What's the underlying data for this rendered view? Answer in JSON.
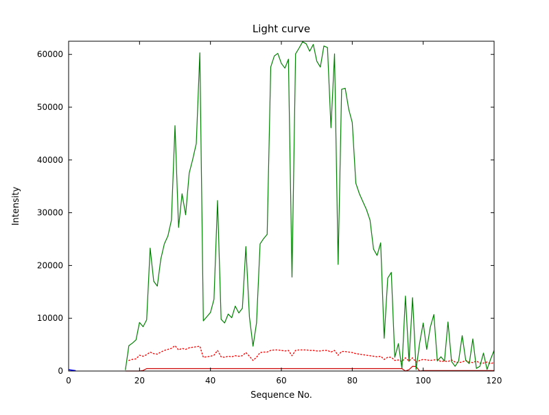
{
  "figure": {
    "background": "#ffffff",
    "frame_color": "#000000"
  },
  "chart_data": {
    "type": "line",
    "title": "Light curve",
    "xlabel": "Sequence No.",
    "ylabel": "Intensity",
    "xlim": [
      0,
      120
    ],
    "ylim": [
      0,
      62500
    ],
    "xticks": [
      0,
      20,
      40,
      60,
      80,
      100,
      120
    ],
    "yticks": [
      0,
      10000,
      20000,
      30000,
      40000,
      50000,
      60000
    ],
    "grid": false,
    "legend_position": "none",
    "series": [
      {
        "name": "light-curve-green",
        "color": "#008000",
        "style": "solid",
        "width": 1.2,
        "x": [
          16,
          17,
          18,
          19,
          20,
          21,
          22,
          23,
          24,
          25,
          26,
          27,
          28,
          29,
          30,
          31,
          32,
          33,
          34,
          35,
          36,
          37,
          38,
          39,
          40,
          41,
          42,
          43,
          44,
          45,
          46,
          47,
          48,
          49,
          50,
          51,
          52,
          53,
          54,
          55,
          56,
          57,
          58,
          59,
          60,
          61,
          62,
          63,
          64,
          65,
          66,
          67,
          68,
          69,
          70,
          71,
          72,
          73,
          74,
          75,
          76,
          77,
          78,
          79,
          80,
          81,
          82,
          83,
          84,
          85,
          86,
          87,
          88,
          89,
          90,
          91,
          92,
          93,
          94,
          95,
          96,
          97,
          98,
          99,
          100,
          101,
          102,
          103,
          104,
          105,
          106,
          107,
          108,
          109,
          110,
          111,
          112,
          113,
          114,
          115,
          116,
          117,
          118,
          119,
          120
        ],
        "y": [
          200,
          4800,
          5300,
          5900,
          9200,
          8400,
          9700,
          23300,
          17000,
          16100,
          21200,
          24100,
          25600,
          28600,
          46500,
          27200,
          33600,
          29600,
          37500,
          40100,
          43100,
          60300,
          9500,
          10300,
          11100,
          13600,
          32300,
          9800,
          9100,
          10800,
          10100,
          12300,
          11000,
          11900,
          23600,
          10200,
          4700,
          9100,
          24100,
          25100,
          25900,
          57600,
          59700,
          60200,
          58300,
          57400,
          59100,
          17800,
          60100,
          61200,
          62400,
          62000,
          60600,
          61900,
          58700,
          57600,
          61600,
          61300,
          46100,
          60100,
          20200,
          53400,
          53600,
          49600,
          47100,
          35600,
          33600,
          32100,
          30600,
          28600,
          23100,
          21900,
          24300,
          6200,
          17600,
          18700,
          2600,
          5200,
          500,
          14200,
          1800,
          13900,
          300,
          5300,
          9100,
          4100,
          8300,
          10700,
          1900,
          2700,
          1900,
          9300,
          1800,
          900,
          1900,
          6700,
          2000,
          1400,
          6100,
          500,
          900,
          3400,
          300,
          2200,
          3900
        ]
      },
      {
        "name": "background-red-dotted",
        "color": "#ff0000",
        "style": "dotted",
        "width": 1.4,
        "x": [
          17,
          18,
          19,
          20,
          21,
          22,
          23,
          24,
          25,
          26,
          27,
          28,
          29,
          30,
          31,
          32,
          33,
          34,
          35,
          36,
          37,
          38,
          39,
          40,
          41,
          42,
          43,
          44,
          45,
          46,
          47,
          48,
          49,
          50,
          51,
          52,
          53,
          54,
          55,
          56,
          57,
          58,
          59,
          60,
          61,
          62,
          63,
          64,
          65,
          66,
          67,
          68,
          69,
          70,
          71,
          72,
          73,
          74,
          75,
          76,
          77,
          78,
          79,
          80,
          81,
          82,
          83,
          84,
          85,
          86,
          87,
          88,
          89,
          90,
          91,
          92,
          93,
          94,
          95,
          96,
          97,
          98,
          99,
          100,
          101,
          102,
          103,
          104,
          105,
          106,
          107,
          108,
          109,
          110,
          111,
          112,
          113,
          114,
          115,
          116,
          117,
          118,
          119,
          120
        ],
        "y": [
          2000,
          2200,
          2300,
          3000,
          2800,
          3100,
          3600,
          3300,
          3200,
          3600,
          3900,
          4100,
          4300,
          4800,
          4000,
          4300,
          4100,
          4400,
          4500,
          4600,
          4700,
          2600,
          2700,
          2800,
          3000,
          3900,
          2700,
          2600,
          2800,
          2700,
          2900,
          2800,
          2900,
          3500,
          2800,
          2000,
          2600,
          3500,
          3600,
          3600,
          3900,
          4000,
          4000,
          3900,
          3800,
          3900,
          2900,
          3900,
          4000,
          4000,
          4000,
          3900,
          3900,
          3800,
          3800,
          3900,
          3900,
          3600,
          3900,
          3000,
          3700,
          3700,
          3600,
          3500,
          3300,
          3200,
          3100,
          3000,
          2900,
          2800,
          2700,
          2800,
          2200,
          2600,
          2600,
          2000,
          2100,
          1800,
          2500,
          1900,
          2500,
          1700,
          2000,
          2200,
          2100,
          2000,
          2100,
          2200,
          1800,
          1900,
          1800,
          2100,
          1700,
          1600,
          1700,
          2000,
          1700,
          1600,
          1900,
          1500,
          1500,
          1700,
          1400,
          1600
        ]
      },
      {
        "name": "baseline-red-solid",
        "color": "#cc0000",
        "style": "solid",
        "width": 1.2,
        "x": [
          16,
          17,
          18,
          19,
          20,
          21,
          22,
          23,
          24,
          25,
          26,
          27,
          28,
          29,
          30,
          31,
          32,
          33,
          34,
          35,
          36,
          37,
          38,
          39,
          40,
          41,
          42,
          43,
          44,
          45,
          46,
          47,
          48,
          49,
          50,
          51,
          52,
          53,
          54,
          55,
          56,
          57,
          58,
          59,
          60,
          61,
          62,
          63,
          64,
          65,
          66,
          67,
          68,
          69,
          70,
          71,
          72,
          73,
          74,
          75,
          76,
          77,
          78,
          79,
          80,
          81,
          82,
          83,
          84,
          85,
          86,
          87,
          88,
          89,
          90,
          91,
          92,
          93,
          94,
          95,
          96,
          97,
          98,
          99,
          100,
          101,
          102,
          103,
          104,
          105,
          106,
          107,
          108,
          109,
          110,
          111,
          112,
          113,
          114,
          115,
          116,
          117,
          118,
          119,
          120
        ],
        "y": [
          0,
          0,
          0,
          0,
          0,
          100,
          450,
          450,
          450,
          450,
          450,
          450,
          450,
          450,
          450,
          450,
          450,
          450,
          450,
          450,
          450,
          450,
          450,
          450,
          450,
          450,
          450,
          450,
          450,
          450,
          450,
          450,
          450,
          450,
          450,
          450,
          450,
          450,
          450,
          450,
          450,
          450,
          450,
          450,
          450,
          450,
          450,
          450,
          450,
          450,
          450,
          450,
          450,
          450,
          450,
          450,
          450,
          450,
          450,
          450,
          450,
          450,
          450,
          450,
          450,
          450,
          450,
          450,
          450,
          450,
          450,
          450,
          450,
          450,
          450,
          450,
          450,
          450,
          450,
          0,
          250,
          900,
          850,
          0,
          80,
          80,
          80,
          80,
          80,
          80,
          80,
          80,
          80,
          80,
          80,
          80,
          80,
          80,
          80,
          80,
          80,
          80,
          80,
          80,
          80
        ]
      },
      {
        "name": "start-segment-blue",
        "color": "#0000ff",
        "style": "solid",
        "width": 1.6,
        "x": [
          0,
          1,
          2
        ],
        "y": [
          250,
          150,
          50
        ]
      }
    ]
  }
}
